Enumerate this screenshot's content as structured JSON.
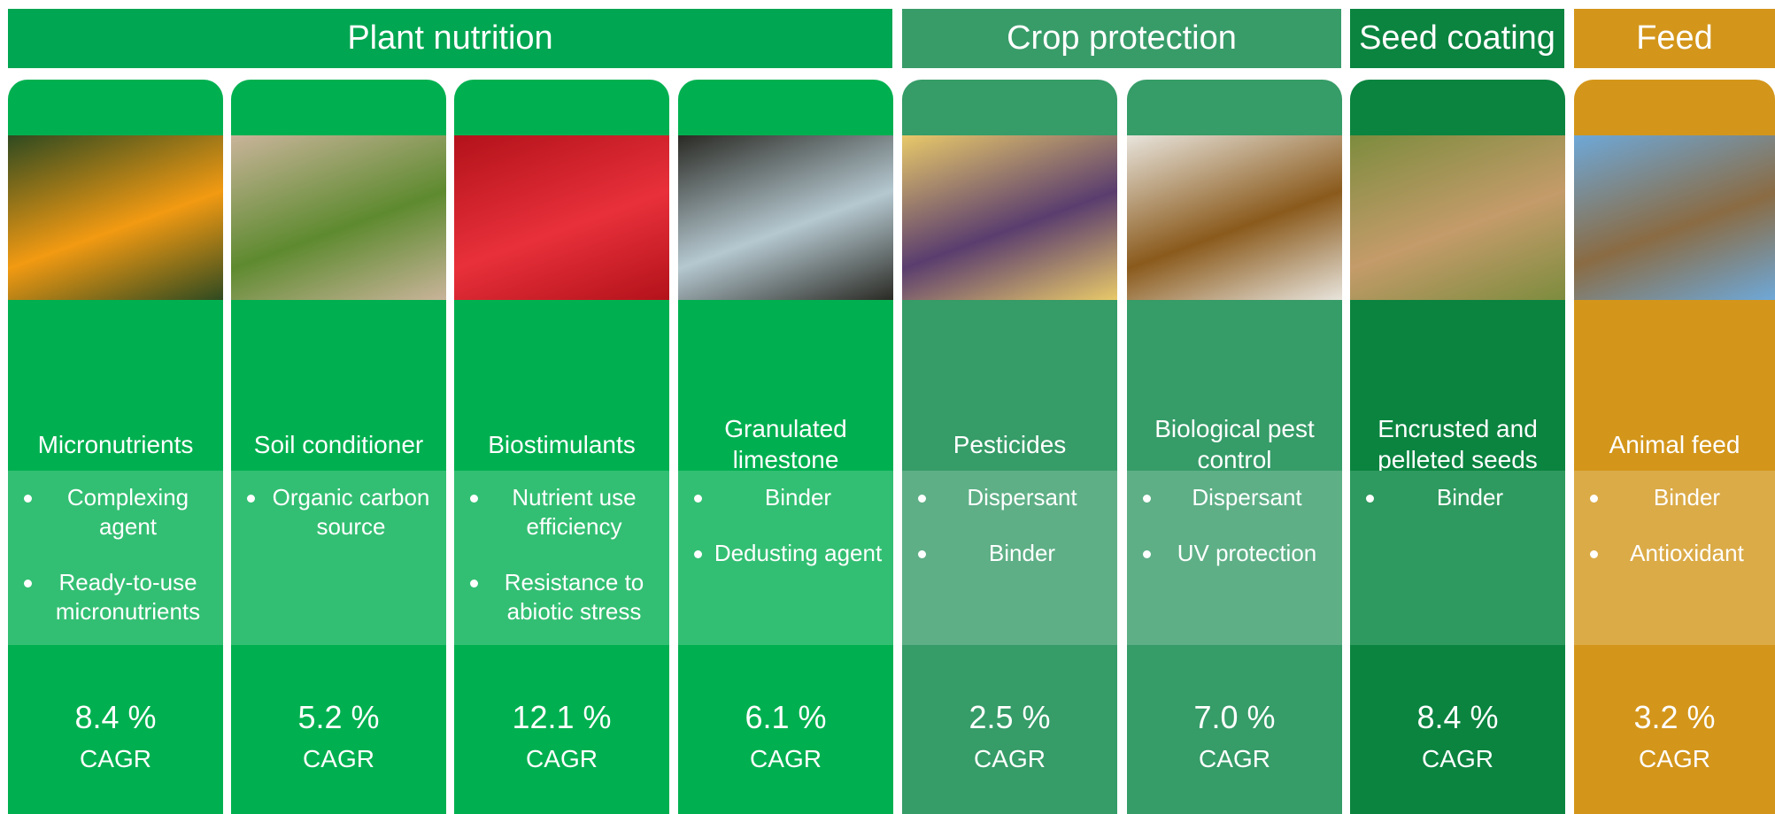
{
  "groups": [
    {
      "title": "Plant nutrition",
      "columns": [
        {
          "name": "Micronutrients",
          "bullets": [
            "Complexing agent",
            "Ready-to-use micronutrients"
          ],
          "cagr": "8.4 %",
          "cagr_label": "CAGR"
        },
        {
          "name": "Soil conditioner",
          "bullets": [
            "Organic carbon source"
          ],
          "cagr": "5.2 %",
          "cagr_label": "CAGR"
        },
        {
          "name": "Biostimulants",
          "bullets": [
            "Nutrient use efficiency",
            "Resistance to abiotic stress"
          ],
          "cagr": "12.1 %",
          "cagr_label": "CAGR"
        },
        {
          "name": "Granulated limestone",
          "bullets": [
            "Binder",
            "Dedusting agent"
          ],
          "cagr": "6.1 %",
          "cagr_label": "CAGR"
        }
      ]
    },
    {
      "title": "Crop protection",
      "columns": [
        {
          "name": "Pesticides",
          "bullets": [
            "Dispersant",
            "Binder"
          ],
          "cagr": "2.5 %",
          "cagr_label": "CAGR"
        },
        {
          "name": "Biological pest control",
          "bullets": [
            "Dispersant",
            "UV protection"
          ],
          "cagr": "7.0 %",
          "cagr_label": "CAGR"
        }
      ]
    },
    {
      "title": "Seed coating",
      "columns": [
        {
          "name": "Encrusted and pelleted seeds",
          "bullets": [
            "Binder"
          ],
          "cagr": "8.4 %",
          "cagr_label": "CAGR"
        }
      ]
    },
    {
      "title": "Feed",
      "columns": [
        {
          "name": "Animal feed",
          "bullets": [
            "Binder",
            "Antioxidant"
          ],
          "cagr": "3.2 %",
          "cagr_label": "CAGR"
        }
      ]
    }
  ]
}
